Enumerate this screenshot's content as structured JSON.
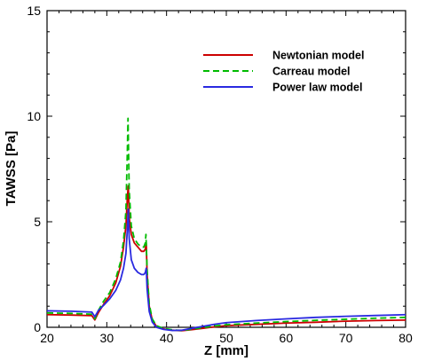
{
  "chart_data": {
    "type": "line",
    "title": "",
    "xlabel": "Z [mm]",
    "ylabel": "TAWSS [Pa]",
    "xlim": [
      20,
      80
    ],
    "ylim": [
      0,
      15
    ],
    "xticks": [
      20,
      30,
      40,
      50,
      60,
      70,
      80
    ],
    "yticks": [
      0,
      5,
      10,
      15
    ],
    "legend_position": "top-right",
    "grid": false,
    "series": [
      {
        "name": "Newtonian model",
        "color": "#cc0000",
        "dash": "solid",
        "points": [
          [
            20,
            0.6
          ],
          [
            24,
            0.58
          ],
          [
            27.5,
            0.55
          ],
          [
            28,
            0.35
          ],
          [
            28.6,
            0.7
          ],
          [
            29.5,
            1.1
          ],
          [
            30.5,
            1.5
          ],
          [
            31.5,
            2.1
          ],
          [
            32.3,
            2.9
          ],
          [
            32.8,
            3.8
          ],
          [
            33.2,
            4.8
          ],
          [
            33.45,
            6.2
          ],
          [
            33.6,
            6.7
          ],
          [
            33.75,
            5.2
          ],
          [
            34.1,
            4.4
          ],
          [
            34.6,
            4.0
          ],
          [
            35.2,
            3.8
          ],
          [
            35.8,
            3.6
          ],
          [
            36.2,
            3.6
          ],
          [
            36.45,
            3.7
          ],
          [
            36.6,
            4.0
          ],
          [
            36.75,
            2.5
          ],
          [
            37.1,
            1.0
          ],
          [
            37.6,
            0.35
          ],
          [
            38.3,
            0.05
          ],
          [
            39.5,
            -0.08
          ],
          [
            41,
            -0.14
          ],
          [
            42.5,
            -0.16
          ],
          [
            44,
            -0.12
          ],
          [
            46,
            -0.05
          ],
          [
            48,
            0.02
          ],
          [
            50,
            0.08
          ],
          [
            55,
            0.14
          ],
          [
            60,
            0.2
          ],
          [
            65,
            0.24
          ],
          [
            70,
            0.29
          ],
          [
            75,
            0.32
          ],
          [
            80,
            0.34
          ]
        ]
      },
      {
        "name": "Carreau model",
        "color": "#00bb00",
        "dash": "dashed",
        "points": [
          [
            20,
            0.68
          ],
          [
            24,
            0.66
          ],
          [
            27.5,
            0.62
          ],
          [
            28,
            0.4
          ],
          [
            28.6,
            0.8
          ],
          [
            29.5,
            1.25
          ],
          [
            30.5,
            1.65
          ],
          [
            31.5,
            2.3
          ],
          [
            32.3,
            3.1
          ],
          [
            32.8,
            4.1
          ],
          [
            33.2,
            5.5
          ],
          [
            33.45,
            8.5
          ],
          [
            33.55,
            9.9
          ],
          [
            33.75,
            6.5
          ],
          [
            34.1,
            4.8
          ],
          [
            34.6,
            4.2
          ],
          [
            35.2,
            3.95
          ],
          [
            35.8,
            3.8
          ],
          [
            36.2,
            3.8
          ],
          [
            36.45,
            4.0
          ],
          [
            36.55,
            4.4
          ],
          [
            36.75,
            2.7
          ],
          [
            37.1,
            1.1
          ],
          [
            37.6,
            0.4
          ],
          [
            38.3,
            0.08
          ],
          [
            39.5,
            -0.06
          ],
          [
            41,
            -0.12
          ],
          [
            42.5,
            -0.15
          ],
          [
            44,
            -0.1
          ],
          [
            46,
            -0.02
          ],
          [
            48,
            0.06
          ],
          [
            50,
            0.12
          ],
          [
            55,
            0.2
          ],
          [
            60,
            0.27
          ],
          [
            65,
            0.33
          ],
          [
            70,
            0.38
          ],
          [
            75,
            0.43
          ],
          [
            80,
            0.47
          ]
        ]
      },
      {
        "name": "Power law model",
        "color": "#2a2ae0",
        "dash": "solid",
        "points": [
          [
            20,
            0.78
          ],
          [
            24,
            0.76
          ],
          [
            27.5,
            0.72
          ],
          [
            28,
            0.5
          ],
          [
            28.6,
            0.8
          ],
          [
            29.5,
            1.05
          ],
          [
            30.5,
            1.35
          ],
          [
            31.5,
            1.75
          ],
          [
            32.3,
            2.25
          ],
          [
            32.8,
            2.8
          ],
          [
            33.2,
            3.5
          ],
          [
            33.45,
            4.7
          ],
          [
            33.6,
            5.6
          ],
          [
            33.75,
            4.2
          ],
          [
            34.1,
            3.2
          ],
          [
            34.6,
            2.8
          ],
          [
            35.2,
            2.6
          ],
          [
            35.8,
            2.5
          ],
          [
            36.2,
            2.5
          ],
          [
            36.45,
            2.6
          ],
          [
            36.6,
            2.8
          ],
          [
            36.75,
            1.8
          ],
          [
            37.1,
            0.75
          ],
          [
            37.6,
            0.25
          ],
          [
            38.3,
            0.0
          ],
          [
            39.5,
            -0.1
          ],
          [
            41,
            -0.15
          ],
          [
            42.5,
            -0.14
          ],
          [
            44,
            -0.06
          ],
          [
            46,
            0.04
          ],
          [
            48,
            0.14
          ],
          [
            50,
            0.22
          ],
          [
            55,
            0.32
          ],
          [
            60,
            0.4
          ],
          [
            65,
            0.47
          ],
          [
            70,
            0.52
          ],
          [
            75,
            0.56
          ],
          [
            80,
            0.6
          ]
        ]
      }
    ]
  }
}
